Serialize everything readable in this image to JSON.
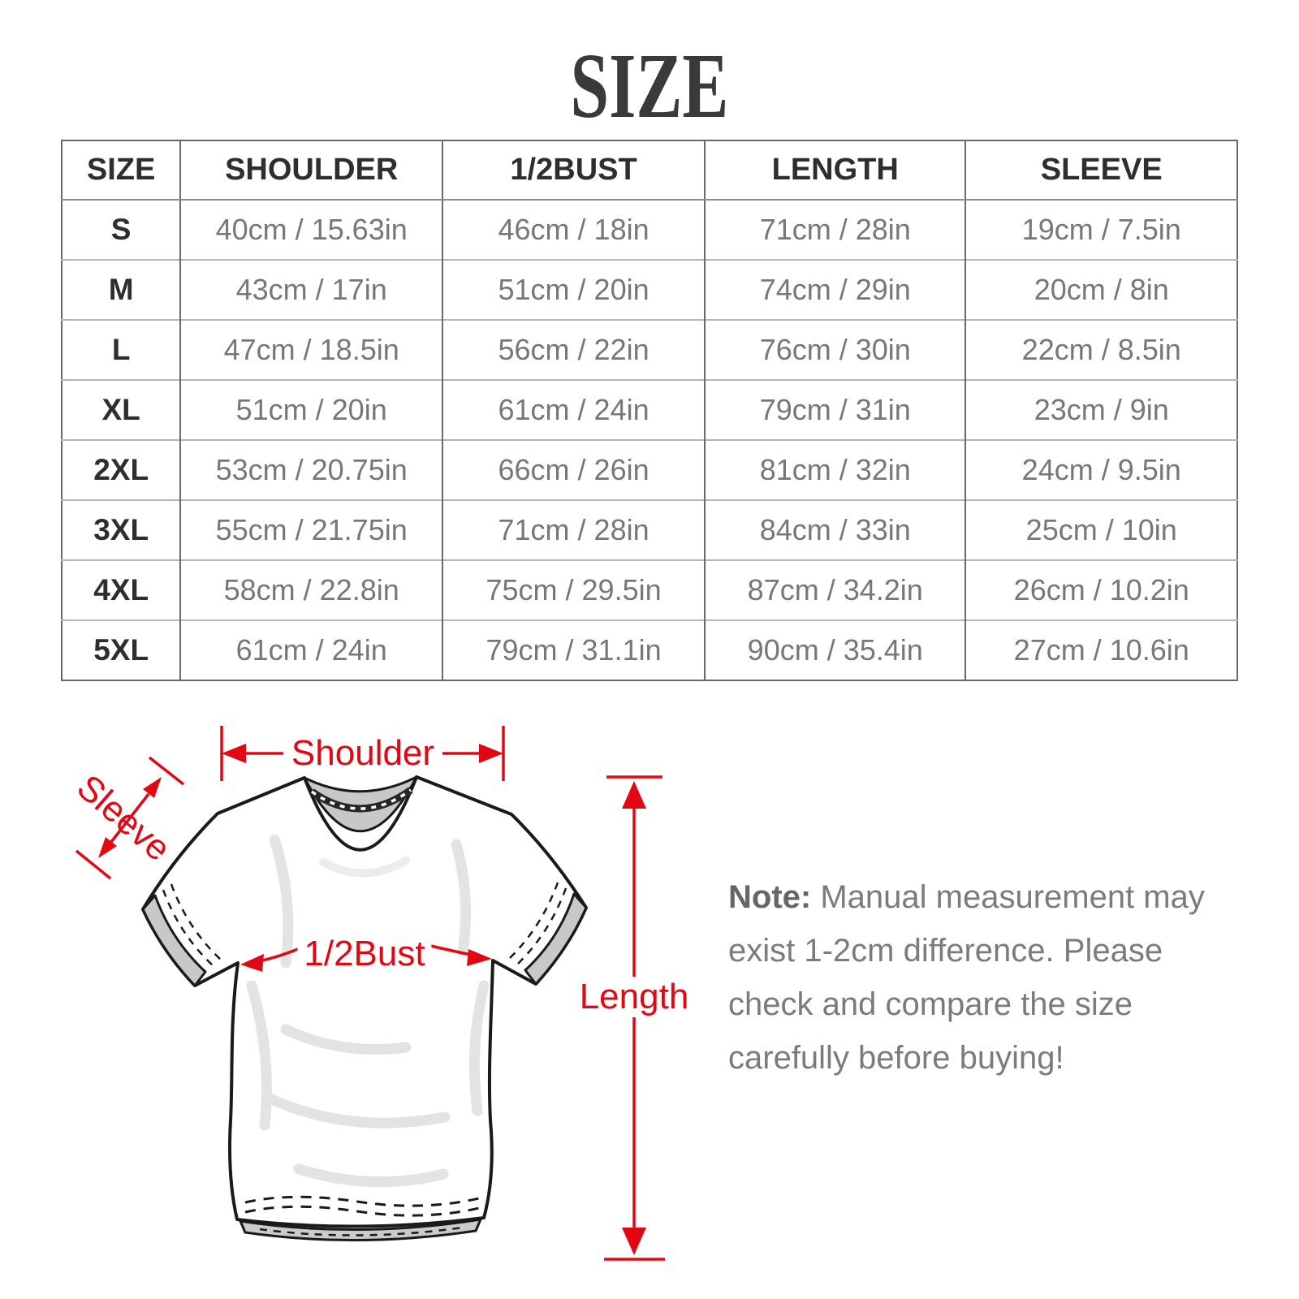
{
  "title": "SIZE",
  "table": {
    "headers": [
      "SIZE",
      "SHOULDER",
      "1/2BUST",
      "LENGTH",
      "SLEEVE"
    ],
    "rows": [
      [
        "S",
        "40cm / 15.63in",
        "46cm / 18in",
        "71cm / 28in",
        "19cm / 7.5in"
      ],
      [
        "M",
        "43cm / 17in",
        "51cm / 20in",
        "74cm / 29in",
        "20cm / 8in"
      ],
      [
        "L",
        "47cm / 18.5in",
        "56cm / 22in",
        "76cm / 30in",
        "22cm / 8.5in"
      ],
      [
        "XL",
        "51cm / 20in",
        "61cm / 24in",
        "79cm / 31in",
        "23cm / 9in"
      ],
      [
        "2XL",
        "53cm / 20.75in",
        "66cm / 26in",
        "81cm / 32in",
        "24cm / 9.5in"
      ],
      [
        "3XL",
        "55cm / 21.75in",
        "71cm / 28in",
        "84cm / 33in",
        "25cm / 10in"
      ],
      [
        "4XL",
        "58cm / 22.8in",
        "75cm / 29.5in",
        "87cm / 34.2in",
        "26cm / 10.2in"
      ],
      [
        "5XL",
        "61cm / 24in",
        "79cm / 31.1in",
        "90cm / 35.4in",
        "27cm / 10.6in"
      ]
    ]
  },
  "diagram": {
    "labels": {
      "shoulder": "Shoulder",
      "sleeve": "Sleeve",
      "bust": "1/2Bust",
      "length": "Length"
    }
  },
  "note": {
    "label": "Note:",
    "lines": [
      "Manual measurement may",
      "exist 1-2cm difference. Please",
      "check and compare the size",
      "carefully before buying!"
    ]
  },
  "colors": {
    "accent_red": "#e30613",
    "title_text": "#3a3a3c",
    "header_text": "#2e2e2e",
    "data_text": "#777777",
    "note_text": "#7b7b7b",
    "collar_gray": "#c8c8c8",
    "table_border_dark": "#6a6a6a",
    "table_border_light": "#b5b5b5"
  }
}
